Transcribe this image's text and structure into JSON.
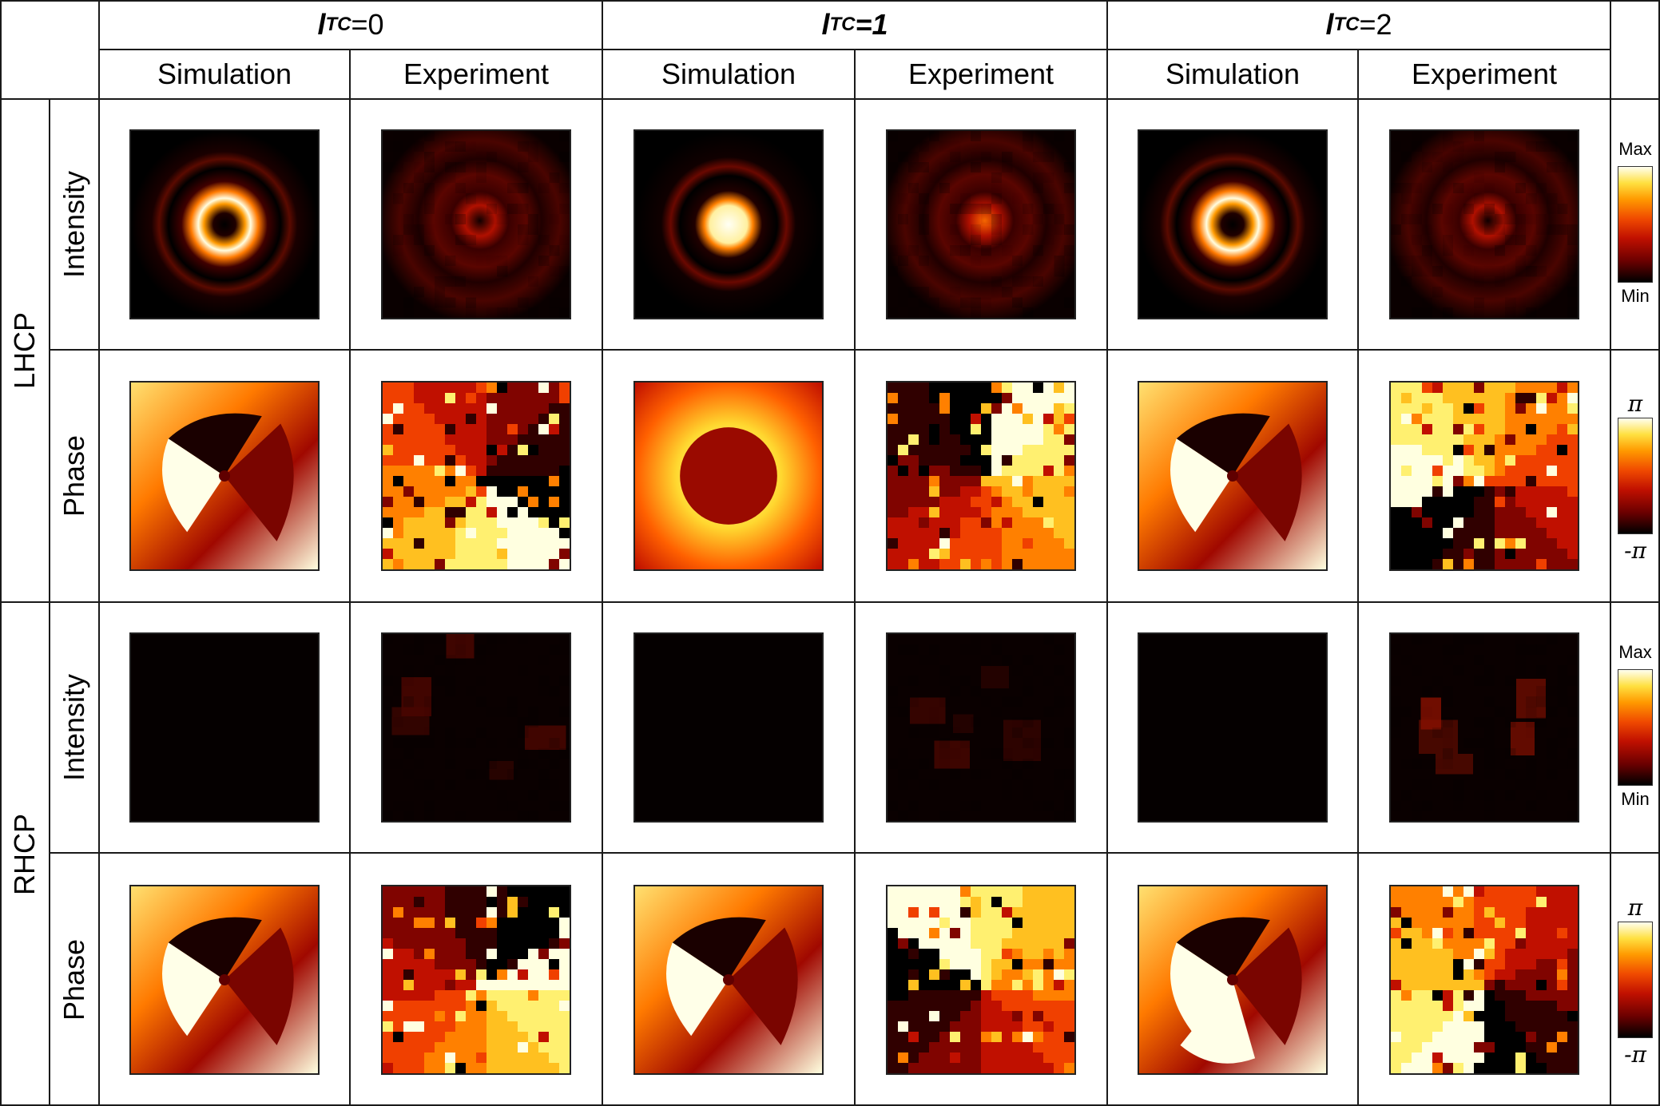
{
  "tc_groups": [
    {
      "l": "l",
      "sub": "TC",
      "rest": "=0",
      "rest_bold": false
    },
    {
      "l": "l",
      "sub": "TC",
      "rest": "=1",
      "rest_bold": true
    },
    {
      "l": "l",
      "sub": "TC",
      "rest": "=2",
      "rest_bold": false
    }
  ],
  "subheaders": [
    "Simulation",
    "Experiment",
    "Simulation",
    "Experiment",
    "Simulation",
    "Experiment"
  ],
  "polarizations": [
    "LHCP",
    "RHCP"
  ],
  "row_labels": [
    "Intensity",
    "Phase",
    "Intensity",
    "Phase"
  ],
  "colorbars": [
    {
      "top": "Max",
      "bottom": "Min",
      "kind": "text"
    },
    {
      "top": "π",
      "bottom": "-π",
      "kind": "symbol"
    },
    {
      "top": "Max",
      "bottom": "Min",
      "kind": "text"
    },
    {
      "top": "π",
      "bottom": "-π",
      "kind": "symbol"
    }
  ],
  "colormap": "hot",
  "panels": [
    [
      "sim-ring-donut",
      "exp-ring-donut",
      "sim-ring-spot",
      "exp-ring-spot",
      "sim-ring-donut-large",
      "exp-ring-donut"
    ],
    [
      "sim-phase-vortex",
      "exp-phase-vortex",
      "sim-phase-flat",
      "exp-phase-ring",
      "sim-phase-vortex",
      "exp-phase-vortex"
    ],
    [
      "sim-dark",
      "exp-dark-speckle",
      "sim-dark",
      "exp-dark-speckle",
      "sim-dark",
      "exp-dark-speckle-bright"
    ],
    [
      "sim-phase-vortex",
      "exp-phase-patches",
      "sim-phase-vortex",
      "exp-phase-patches",
      "sim-phase-vortex-double",
      "exp-phase-patches"
    ]
  ]
}
